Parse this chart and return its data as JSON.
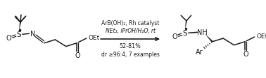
{
  "bg_color": "#ffffff",
  "fig_width": 3.78,
  "fig_height": 1.13,
  "dpi": 100,
  "arrow_text_line1": "ArB(OH)₂, Rh catalyst",
  "arrow_text_line2": "NEt₃, iPrOH/H₂O, rt",
  "arrow_text_yield": "52-81%",
  "arrow_text_dr": "dr ≥96:4, 7 examples",
  "line_color": "#1a1a1a",
  "text_color": "#1a1a1a"
}
